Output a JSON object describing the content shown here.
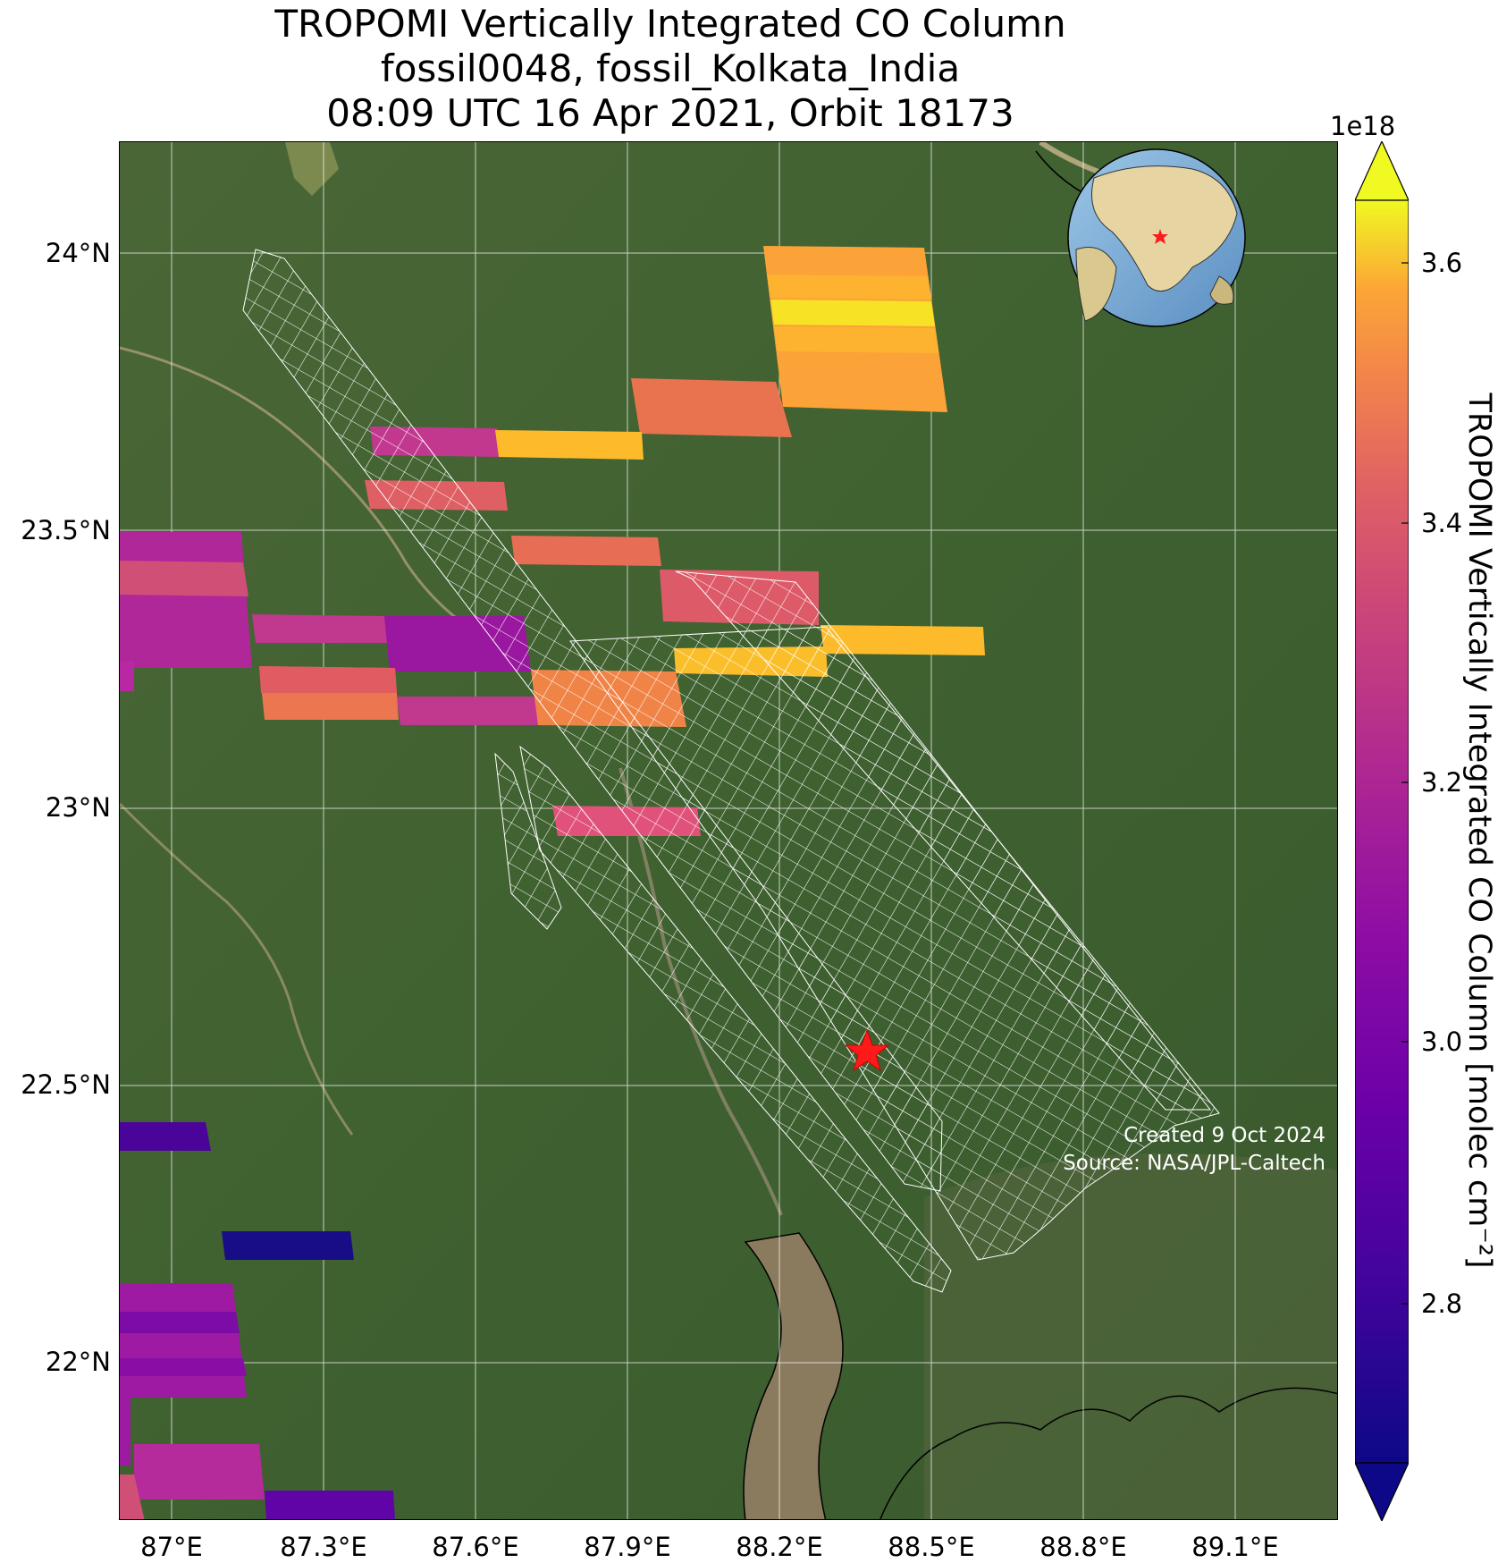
{
  "title": {
    "line1": "TROPOMI Vertically Integrated CO Column",
    "line2": "fossil0048, fossil_Kolkata_India",
    "line3": "08:09 UTC 16 Apr 2021, Orbit 18173"
  },
  "map": {
    "lon_range": [
      86.9,
      89.3
    ],
    "lat_range": [
      21.83,
      24.2
    ],
    "x_ticks": [
      "87°E",
      "87.3°E",
      "87.6°E",
      "87.9°E",
      "88.2°E",
      "88.5°E",
      "88.8°E",
      "89.1°E"
    ],
    "y_ticks": [
      "24°N",
      "23.5°N",
      "23°N",
      "22.5°N",
      "22°N"
    ],
    "target_marker": "red-star",
    "inset": "globe-with-red-star-over-india",
    "credit_line1": "Created 9 Oct 2024",
    "credit_line2": "Source: NASA/JPL-Caltech"
  },
  "colorbar": {
    "colormap": "plasma",
    "exponent": "1e18",
    "range": [
      2.68,
      3.64
    ],
    "ticks": [
      "2.8",
      "3.0",
      "3.2",
      "3.4",
      "3.6"
    ],
    "label": "TROPOMI Vertically Integrated CO Column [molec cm⁻²]"
  },
  "colors": {
    "marker": "#ff1a1a",
    "grid": "#ffffff",
    "footprint": "#ffffff"
  }
}
